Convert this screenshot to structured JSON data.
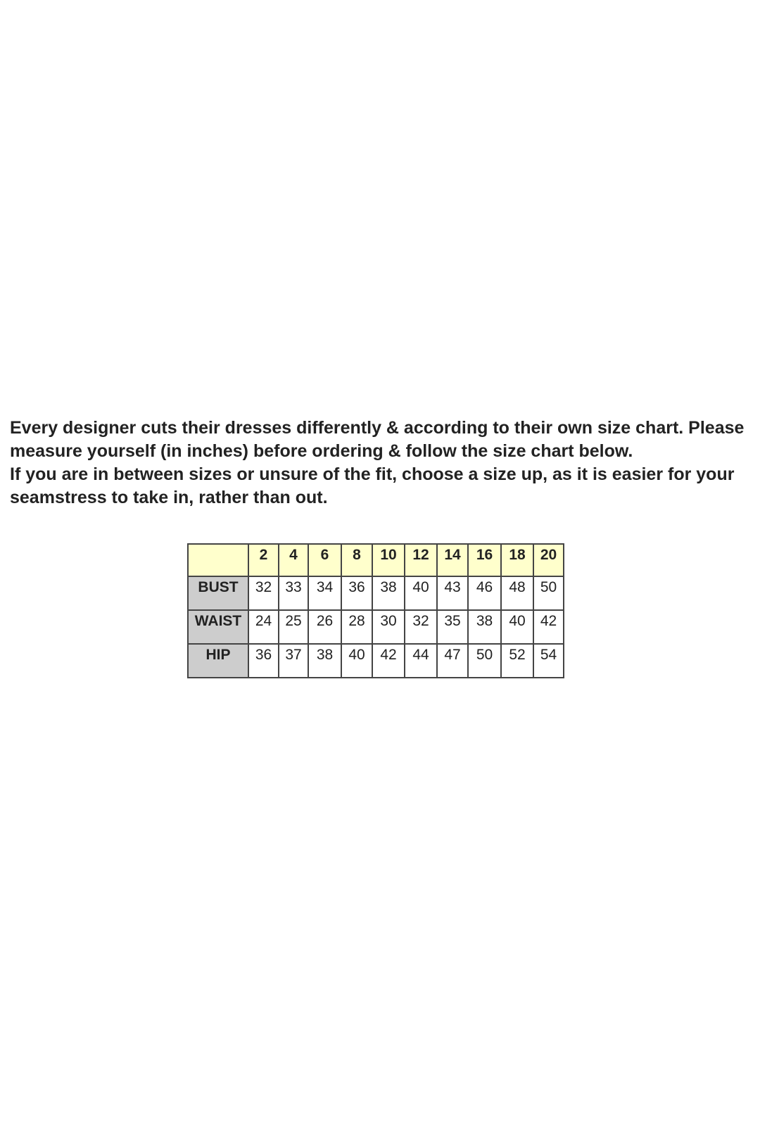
{
  "intro": {
    "paragraph1": "Every designer cuts their dresses differently & according to their own size chart. Please measure yourself (in inches) before ordering & follow the size chart below.",
    "paragraph2": "If you are in between sizes or unsure of the fit, choose a size up, as it is easier for your seamstress to take in, rather than out."
  },
  "size_table": {
    "sizes": [
      "2",
      "4",
      "6",
      "8",
      "10",
      "12",
      "14",
      "16",
      "18",
      "20"
    ],
    "rows": [
      {
        "label": "BUST",
        "values": [
          "32",
          "33",
          "34",
          "36",
          "38",
          "40",
          "43",
          "46",
          "48",
          "50"
        ]
      },
      {
        "label": "WAIST",
        "values": [
          "24",
          "25",
          "26",
          "28",
          "30",
          "32",
          "35",
          "38",
          "40",
          "42"
        ]
      },
      {
        "label": "HIP",
        "values": [
          "36",
          "37",
          "38",
          "40",
          "42",
          "44",
          "47",
          "50",
          "52",
          "54"
        ]
      }
    ],
    "colors": {
      "header_bg": "#ffffcc",
      "label_bg": "#cdcdcd",
      "border": "#444444"
    }
  }
}
